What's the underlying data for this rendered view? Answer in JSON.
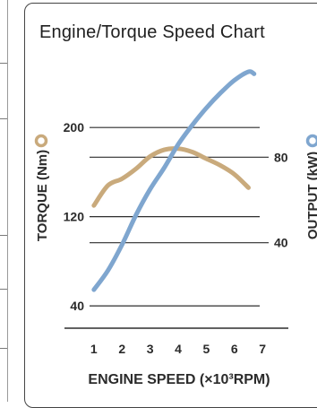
{
  "chart_data": {
    "type": "line",
    "title": "Engine/Torque Speed Chart",
    "xlabel": "ENGINE SPEED (×10³RPM)",
    "x_ticks": [
      "1",
      "2",
      "3",
      "4",
      "5",
      "6",
      "7"
    ],
    "xlim": [
      0.4,
      7.6
    ],
    "y_left": {
      "label": "TORQUE (Nm)",
      "ticks": [
        "200",
        "120",
        "40"
      ],
      "tick_values": [
        200,
        120,
        40
      ],
      "range": [
        20,
        250
      ]
    },
    "y_right": {
      "label": "OUTPUT (kW)",
      "ticks": [
        "80",
        "40"
      ],
      "tick_values": [
        80,
        40
      ],
      "range": [
        0,
        120
      ]
    },
    "grid": true,
    "legend": "axis-markers",
    "series": [
      {
        "name": "TORQUE (Nm)",
        "axis": "left",
        "color": "#c9aa7c",
        "marker": "ring",
        "x": [
          1.0,
          1.5,
          2.0,
          2.5,
          3.0,
          3.5,
          4.0,
          4.5,
          5.0,
          5.5,
          6.0,
          6.5
        ],
        "y": [
          130,
          148,
          154,
          163,
          174,
          180,
          181,
          178,
          172,
          166,
          158,
          146
        ]
      },
      {
        "name": "OUTPUT (kW)",
        "axis": "right",
        "color": "#7fa6cf",
        "marker": "ring",
        "x": [
          1.0,
          1.5,
          2.0,
          2.5,
          3.0,
          3.5,
          4.0,
          4.5,
          5.0,
          5.5,
          6.0,
          6.5,
          6.7
        ],
        "y": [
          18,
          27,
          39,
          53,
          65,
          75,
          86,
          95,
          103,
          110,
          116,
          120,
          119
        ]
      }
    ]
  }
}
